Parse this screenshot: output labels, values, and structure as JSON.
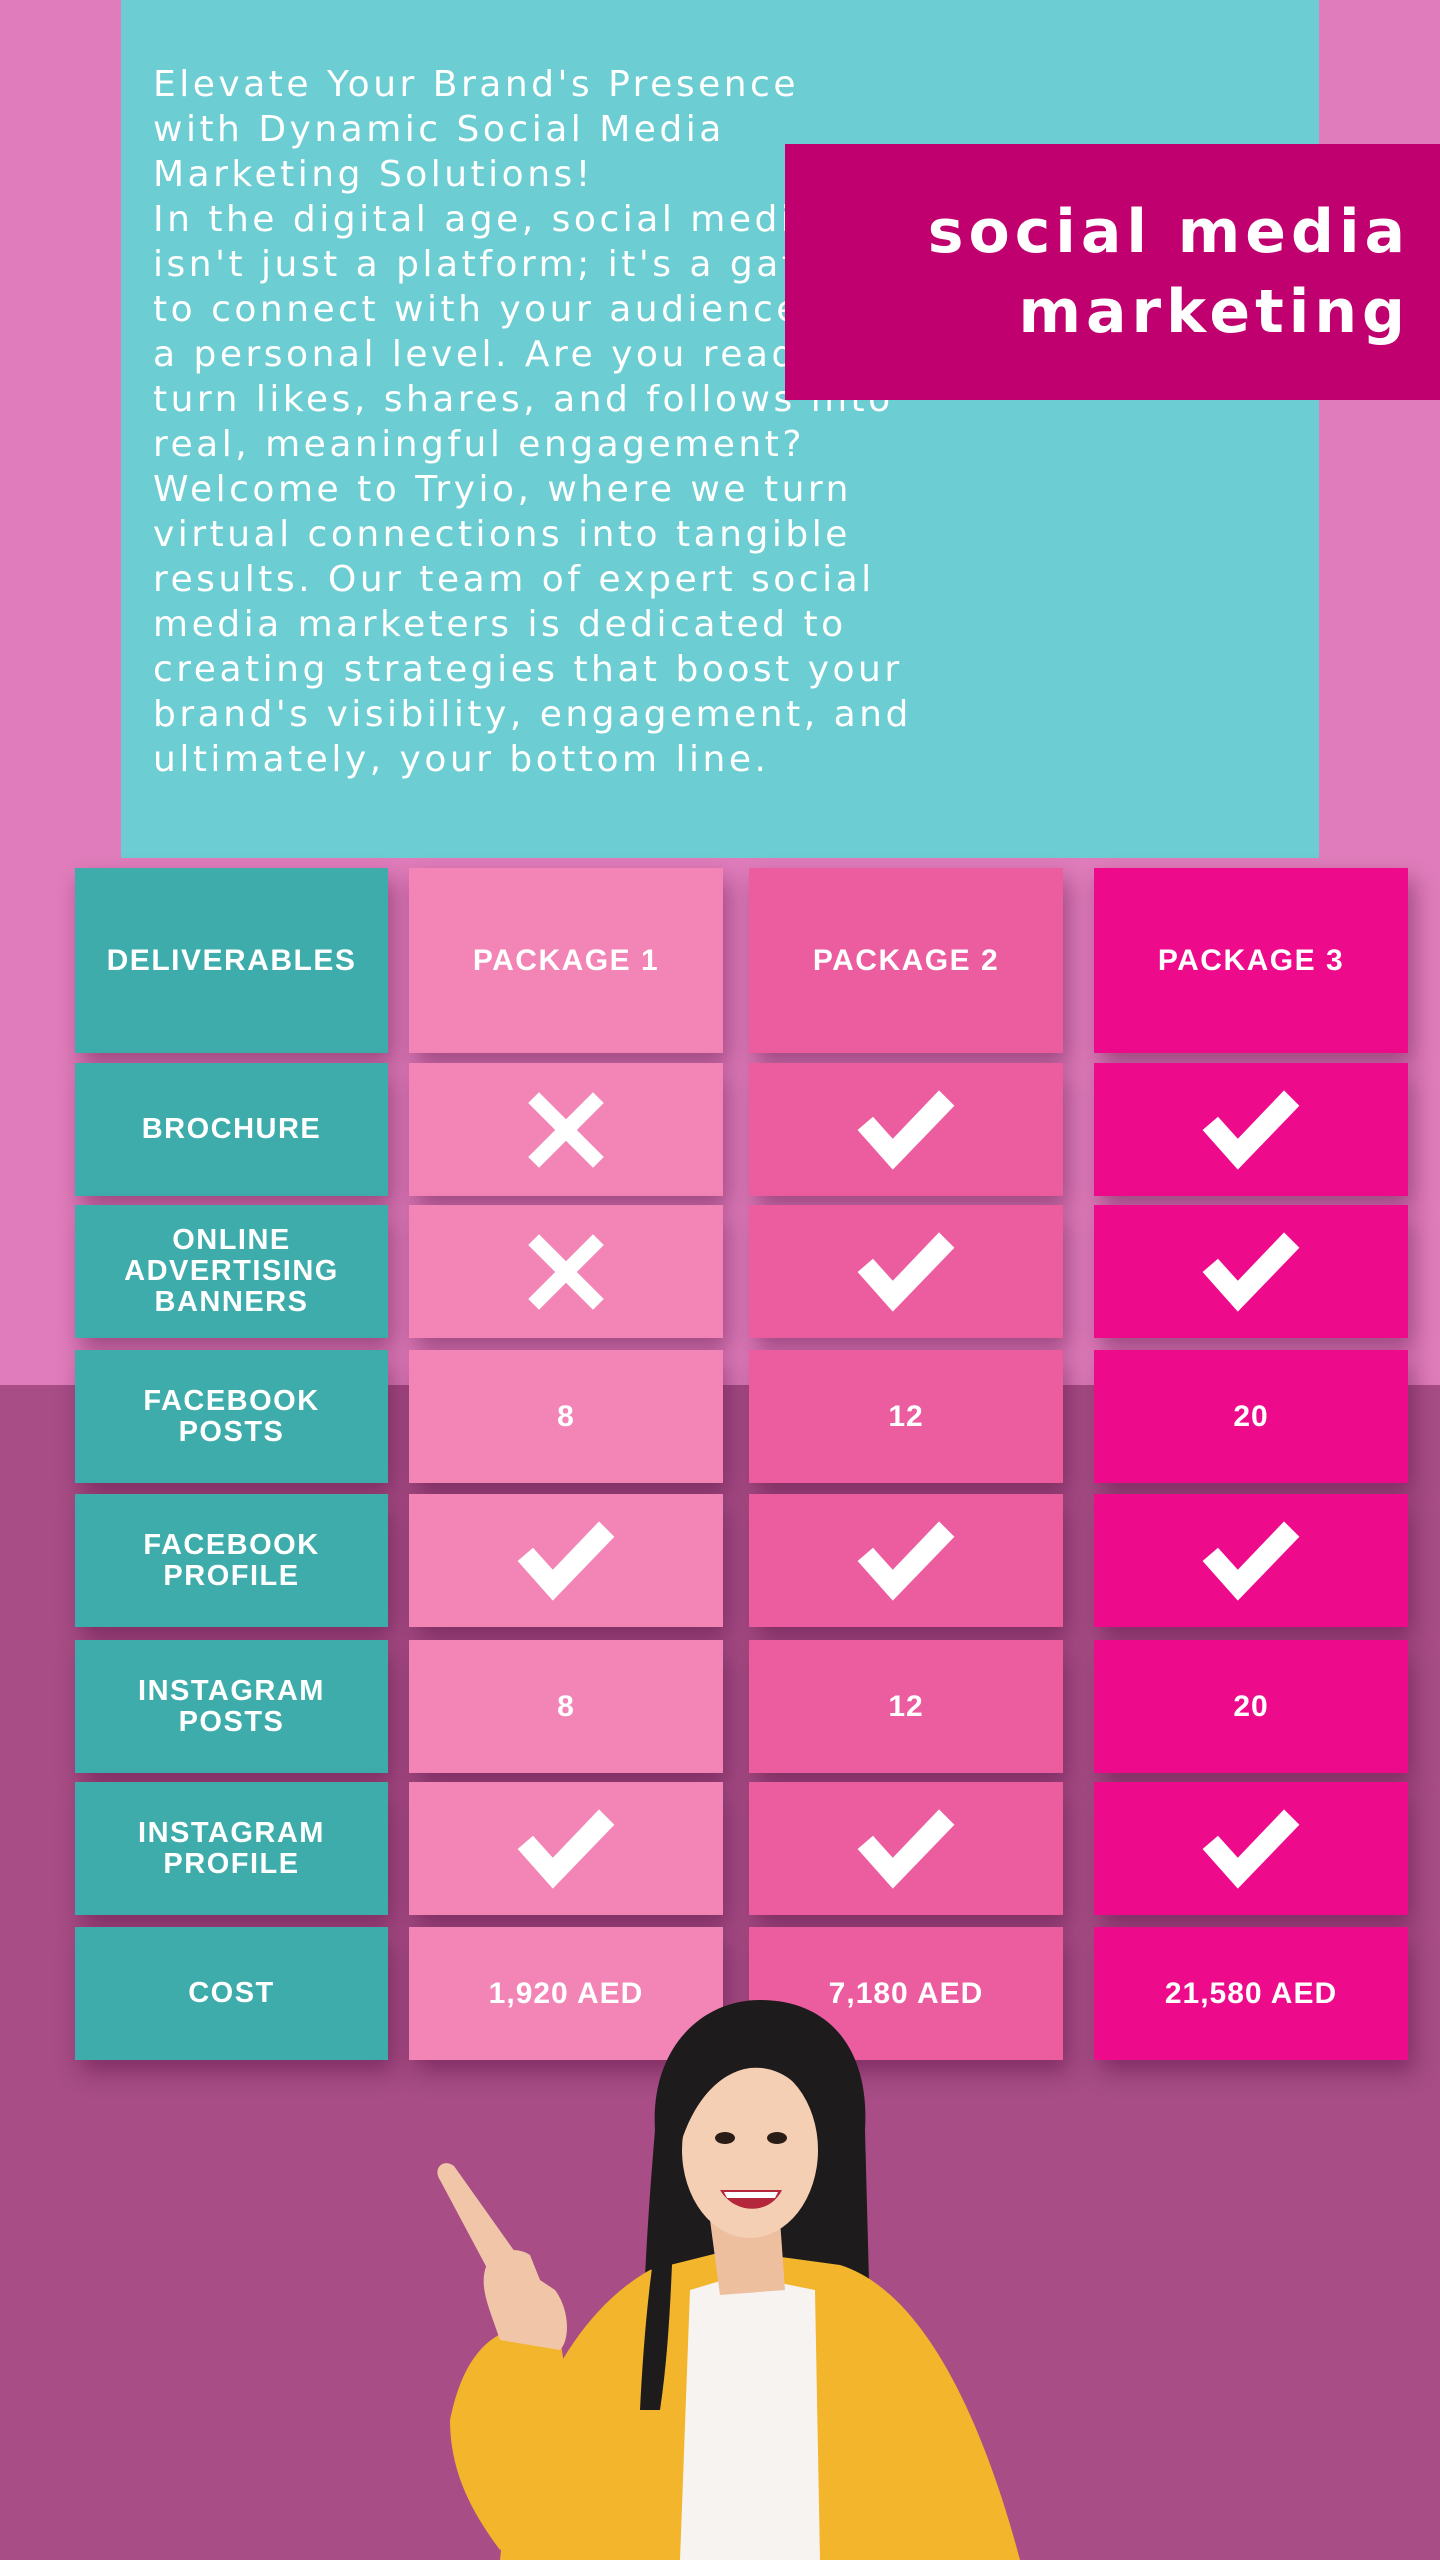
{
  "intro_text": {
    "lines": [
      "Elevate Your Brand's Presence",
      "with Dynamic Social Media",
      "Marketing Solutions!",
      "In the digital age, social media",
      "isn't just a platform; it's a gateway",
      "to connect with your audience on",
      "a personal level. Are you ready to",
      "turn likes, shares, and follows into",
      "real, meaningful engagement?",
      "Welcome to Tryio, where we turn",
      "virtual connections into tangible",
      "results. Our team of expert social",
      "media marketers is dedicated to",
      "creating strategies that boost your",
      "brand's visibility, engagement, and",
      "ultimately, your bottom line."
    ]
  },
  "title": {
    "line1": "social media",
    "line2": "marketing"
  },
  "colors": {
    "background_top": "#e07cbb",
    "background_bottom": "#a84d86",
    "teal_panel": "#6ccdd3",
    "title_box": "#c0006e",
    "deliverables_column": "#3eacab",
    "package1_column": "#f285b6",
    "package2_column": "#ec5d9f",
    "package3_column": "#ee0b8b"
  },
  "table": {
    "headers": [
      "DELIVERABLES",
      "PACKAGE 1",
      "PACKAGE 2",
      "PACKAGE 3"
    ],
    "rows": [
      {
        "label_lines": [
          "BROCHURE"
        ],
        "values": [
          "cross-icon",
          "check-icon",
          "check-icon"
        ]
      },
      {
        "label_lines": [
          "ONLINE",
          "ADVERTISING",
          "BANNERS"
        ],
        "values": [
          "cross-icon",
          "check-icon",
          "check-icon"
        ]
      },
      {
        "label_lines": [
          "FACEBOOK",
          "POSTS"
        ],
        "values": [
          "8",
          "12",
          "20"
        ]
      },
      {
        "label_lines": [
          "FACEBOOK",
          "PROFILE"
        ],
        "values": [
          "check-icon",
          "check-icon",
          "check-icon"
        ]
      },
      {
        "label_lines": [
          "INSTAGRAM",
          "POSTS"
        ],
        "values": [
          "8",
          "12",
          "20"
        ]
      },
      {
        "label_lines": [
          "INSTAGRAM",
          "PROFILE"
        ],
        "values": [
          "check-icon",
          "check-icon",
          "check-icon"
        ]
      },
      {
        "label_lines": [
          "COST"
        ],
        "values": [
          "1,920 AED",
          "7,180 AED",
          "21,580 AED"
        ]
      }
    ]
  },
  "illustration": "smiling-woman-pointing-up"
}
